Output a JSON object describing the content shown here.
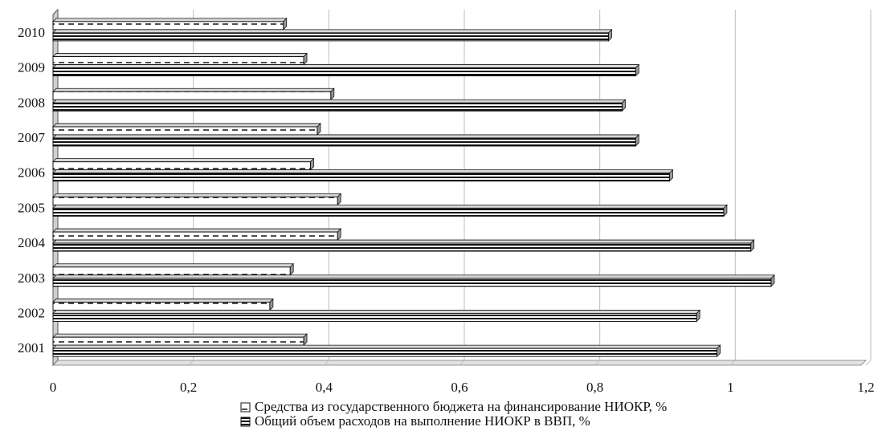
{
  "chart_data": {
    "type": "bar",
    "orientation": "horizontal",
    "categories": [
      "2001",
      "2002",
      "2003",
      "2004",
      "2005",
      "2006",
      "2007",
      "2008",
      "2009",
      "2010"
    ],
    "series": [
      {
        "name": "Средства из государственного бюджета на финансирование НИОКР, %",
        "values": [
          0.37,
          0.32,
          0.35,
          0.42,
          0.42,
          0.38,
          0.39,
          0.41,
          0.37,
          0.34
        ],
        "pattern": "dashed"
      },
      {
        "name": "Общий объем расходов на выполнение НИОКР в ВВП, %",
        "values": [
          0.98,
          0.95,
          1.06,
          1.03,
          0.99,
          0.91,
          0.86,
          0.84,
          0.86,
          0.82
        ],
        "pattern": "striped"
      }
    ],
    "xlim": [
      0,
      1.2
    ],
    "xticks": [
      "0",
      "0,2",
      "0,4",
      "0,6",
      "0,8",
      "1",
      "1,2"
    ],
    "xtick_values": [
      0,
      0.2,
      0.4,
      0.6,
      0.8,
      1.0,
      1.2
    ],
    "grid": true,
    "legend_position": "bottom-center"
  }
}
